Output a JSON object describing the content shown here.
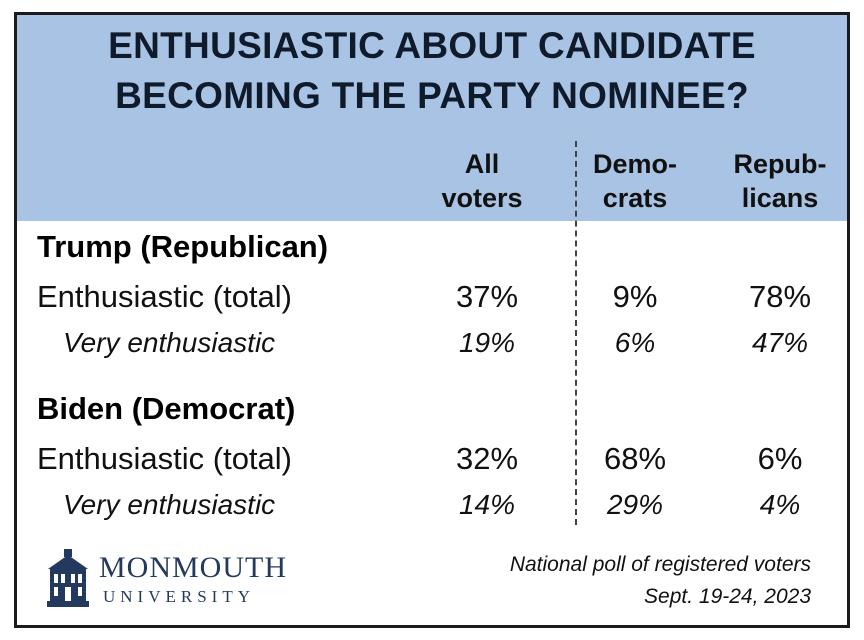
{
  "title": {
    "line1": "ENTHUSIASTIC ABOUT CANDIDATE",
    "line2": "BECOMING THE PARTY NOMINEE?"
  },
  "chart_data": {
    "type": "table",
    "columns": [
      {
        "line1": "All",
        "line2": "voters"
      },
      {
        "line1": "Demo-",
        "line2": "crats"
      },
      {
        "line1": "Repub-",
        "line2": "licans"
      }
    ],
    "groups": [
      {
        "name": "Trump (Republican)",
        "rows": [
          {
            "label": "Enthusiastic (total)",
            "values": [
              "37%",
              "9%",
              "78%"
            ]
          },
          {
            "label": "Very enthusiastic",
            "values": [
              "19%",
              "6%",
              "47%"
            ]
          }
        ]
      },
      {
        "name": "Biden (Democrat)",
        "rows": [
          {
            "label": "Enthusiastic (total)",
            "values": [
              "32%",
              "68%",
              "6%"
            ]
          },
          {
            "label": "Very enthusiastic",
            "values": [
              "14%",
              "29%",
              "4%"
            ]
          }
        ]
      }
    ]
  },
  "logo": {
    "main": "MONMOUTH",
    "sub": "UNIVERSITY",
    "icon": "building-icon"
  },
  "footnote": {
    "line1": "National poll of registered voters",
    "line2": "Sept. 19-24, 2023"
  },
  "colors": {
    "header_bg": "#a9c3e4",
    "border": "#1b1b1b",
    "logo": "#23395d"
  }
}
